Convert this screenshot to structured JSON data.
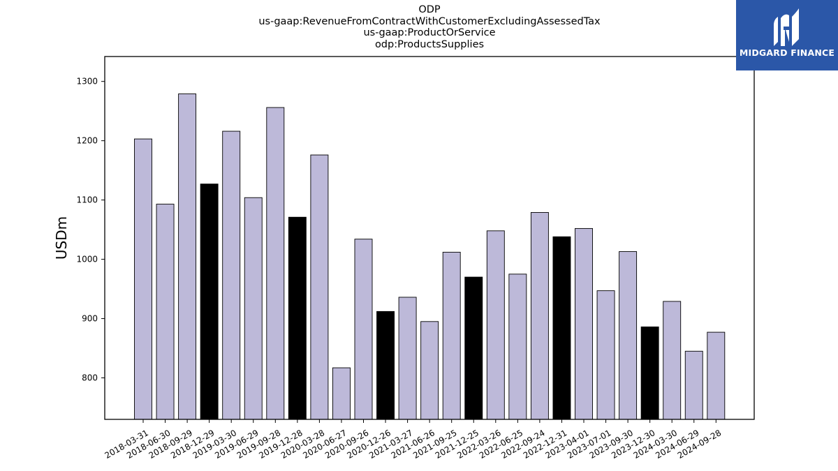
{
  "chart_data": {
    "type": "bar",
    "title_lines": [
      "ODP",
      "us-gaap:RevenueFromContractWithCustomerExcludingAssessedTax",
      "us-gaap:ProductOrService",
      "odp:ProductsSupplies"
    ],
    "ylabel": "USDm",
    "ylim": [
      730,
      1342
    ],
    "yticks": [
      800,
      900,
      1000,
      1100,
      1200,
      1300
    ],
    "categories": [
      "2018-03-31",
      "2018-06-30",
      "2018-09-29",
      "2018-12-29",
      "2019-03-30",
      "2019-06-29",
      "2019-09-28",
      "2019-12-28",
      "2020-03-28",
      "2020-06-27",
      "2020-09-26",
      "2020-12-26",
      "2021-03-27",
      "2021-06-26",
      "2021-09-25",
      "2021-12-25",
      "2022-03-26",
      "2022-06-25",
      "2022-09-24",
      "2022-12-31",
      "2023-04-01",
      "2023-07-01",
      "2023-09-30",
      "2023-12-30",
      "2024-03-30",
      "2024-06-29",
      "2024-09-28"
    ],
    "values": [
      1203,
      1093,
      1279,
      1127,
      1216,
      1104,
      1256,
      1071,
      1176,
      817,
      1034,
      912,
      936,
      895,
      1012,
      970,
      1048,
      975,
      1079,
      1038,
      1052,
      947,
      1013,
      886,
      929,
      845,
      877
    ],
    "highlight_q4": [
      false,
      false,
      false,
      true,
      false,
      false,
      false,
      true,
      false,
      false,
      false,
      true,
      false,
      false,
      false,
      true,
      false,
      false,
      false,
      true,
      false,
      false,
      false,
      true,
      false,
      false,
      false
    ],
    "colors": {
      "default": "#bdb9d9",
      "highlight": "#000000",
      "edge": "#000000"
    },
    "grid": false
  },
  "logo": {
    "text": "MIDGARD FINANCE",
    "background": "#2b57a8"
  }
}
